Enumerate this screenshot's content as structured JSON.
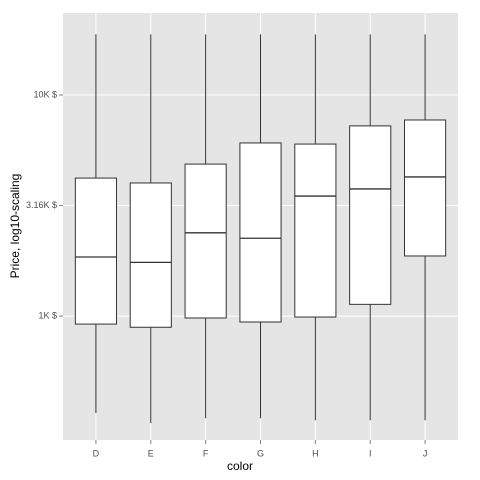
{
  "chart_data": {
    "type": "box",
    "x_label": "color",
    "y_label": "Price, log10-scaling",
    "categories": [
      "D",
      "E",
      "F",
      "G",
      "H",
      "I",
      "J"
    ],
    "whisker_low": [
      364,
      328,
      345,
      345,
      338,
      338,
      338
    ],
    "q1": [
      920,
      890,
      980,
      940,
      990,
      1130,
      1870
    ],
    "median": [
      1850,
      1750,
      2380,
      2250,
      3490,
      3760,
      4260
    ],
    "q3": [
      4210,
      4000,
      4870,
      6070,
      6000,
      7250,
      7710
    ],
    "whisker_high": [
      18800,
      18800,
      18800,
      18800,
      18800,
      18800,
      18800
    ],
    "yscale": "log",
    "ylim": [
      275,
      23500
    ],
    "yticks": [
      {
        "value": 1000,
        "label": "1K $"
      },
      {
        "value": 3162,
        "label": "3.16K $"
      },
      {
        "value": 10000,
        "label": "10K $"
      }
    ],
    "grid": true,
    "color": "#ffffff"
  }
}
